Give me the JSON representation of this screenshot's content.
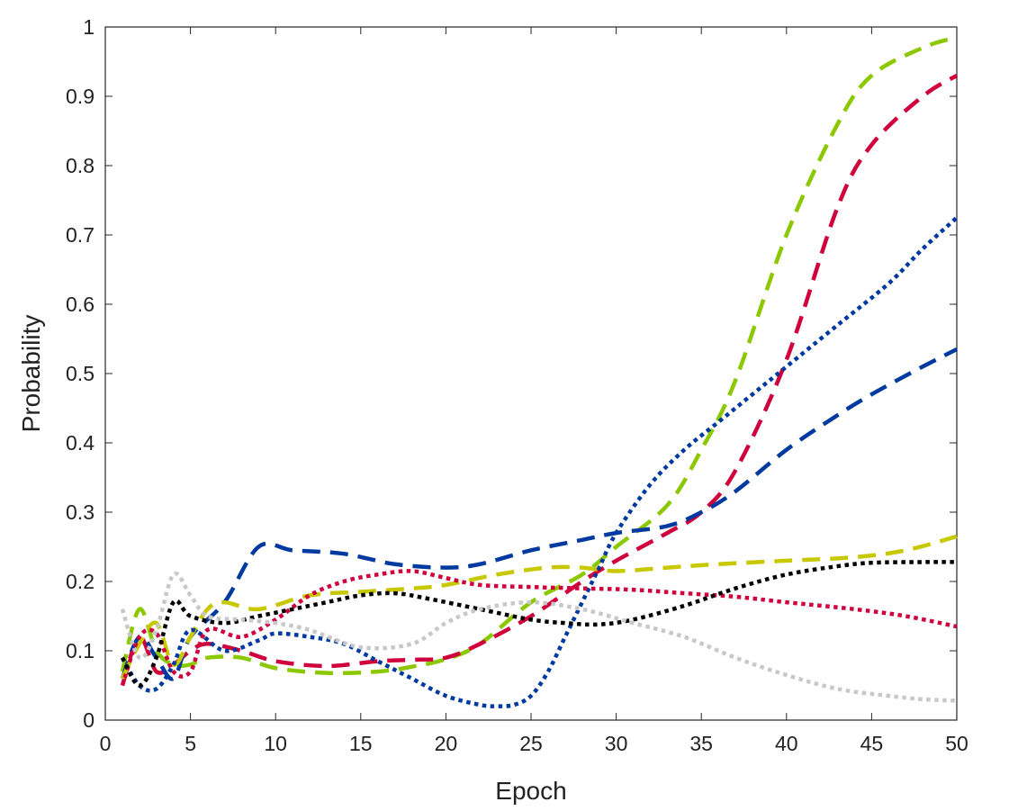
{
  "chart_data": {
    "type": "line",
    "title": "",
    "xlabel": "Epoch",
    "ylabel": "Probability",
    "xlim": [
      0,
      50
    ],
    "ylim": [
      0,
      1
    ],
    "xticks": [
      0,
      5,
      10,
      15,
      20,
      25,
      30,
      35,
      40,
      45,
      50
    ],
    "yticks": [
      0,
      0.1,
      0.2,
      0.3,
      0.4,
      0.5,
      0.6,
      0.7,
      0.8,
      0.9,
      1
    ],
    "xtick_labels": [
      "0",
      "5",
      "10",
      "15",
      "20",
      "25",
      "30",
      "35",
      "40",
      "45",
      "50"
    ],
    "ytick_labels": [
      "0",
      "0.1",
      "0.2",
      "0.3",
      "0.4",
      "0.5",
      "0.6",
      "0.7",
      "0.8",
      "0.9",
      "1"
    ],
    "grid": false,
    "series": [
      {
        "name": "series-lime-dashed",
        "color": "#8cc800",
        "style": "dashed",
        "x": [
          1,
          2,
          3,
          4,
          5,
          6,
          8,
          10,
          13,
          16,
          18,
          20,
          22,
          25,
          28,
          30,
          33,
          35,
          37,
          40,
          43,
          45,
          48,
          50
        ],
        "y": [
          0.07,
          0.16,
          0.1,
          0.08,
          0.08,
          0.09,
          0.09,
          0.075,
          0.068,
          0.07,
          0.077,
          0.088,
          0.11,
          0.17,
          0.21,
          0.25,
          0.31,
          0.39,
          0.49,
          0.7,
          0.86,
          0.93,
          0.97,
          0.985
        ]
      },
      {
        "name": "series-crimson-dashed",
        "color": "#d0003c",
        "style": "dashed",
        "x": [
          1,
          2,
          3,
          4,
          5,
          6,
          8,
          10,
          13,
          16,
          18,
          20,
          22,
          25,
          28,
          30,
          33,
          35,
          37,
          40,
          43,
          45,
          48,
          50
        ],
        "y": [
          0.05,
          0.12,
          0.07,
          0.08,
          0.1,
          0.11,
          0.1,
          0.085,
          0.078,
          0.085,
          0.087,
          0.09,
          0.11,
          0.15,
          0.2,
          0.23,
          0.27,
          0.3,
          0.36,
          0.52,
          0.74,
          0.83,
          0.9,
          0.93
        ]
      },
      {
        "name": "series-blue-dashed",
        "color": "#0039a0",
        "style": "dashed",
        "x": [
          1,
          2,
          3,
          4,
          5,
          7,
          9,
          11,
          14,
          17,
          20,
          22,
          25,
          28,
          30,
          33,
          35,
          37,
          40,
          43,
          45,
          48,
          50
        ],
        "y": [
          0.06,
          0.12,
          0.09,
          0.06,
          0.12,
          0.17,
          0.25,
          0.245,
          0.24,
          0.225,
          0.22,
          0.225,
          0.245,
          0.26,
          0.27,
          0.28,
          0.3,
          0.33,
          0.39,
          0.44,
          0.47,
          0.51,
          0.535
        ]
      },
      {
        "name": "series-yellow-dashed",
        "color": "#c8c800",
        "style": "dashed",
        "x": [
          1,
          2,
          3,
          4,
          5,
          6,
          7,
          9,
          12,
          15,
          18,
          20,
          23,
          26,
          28,
          30,
          33,
          36,
          40,
          44,
          47,
          50
        ],
        "y": [
          0.06,
          0.11,
          0.14,
          0.08,
          0.12,
          0.16,
          0.17,
          0.16,
          0.18,
          0.185,
          0.19,
          0.195,
          0.21,
          0.22,
          0.22,
          0.215,
          0.22,
          0.225,
          0.23,
          0.235,
          0.245,
          0.265
        ]
      },
      {
        "name": "series-blue-dotted",
        "color": "#0039a0",
        "style": "dotted",
        "x": [
          1,
          2,
          3,
          4,
          5,
          7,
          9,
          10,
          12,
          14,
          16,
          18,
          20,
          22,
          23,
          24,
          25,
          26,
          27,
          28,
          29,
          30,
          32,
          34,
          36,
          38,
          40,
          43,
          46,
          48,
          50
        ],
        "y": [
          0.09,
          0.05,
          0.045,
          0.08,
          0.13,
          0.1,
          0.115,
          0.125,
          0.12,
          0.11,
          0.085,
          0.06,
          0.035,
          0.022,
          0.02,
          0.022,
          0.035,
          0.07,
          0.12,
          0.17,
          0.22,
          0.27,
          0.34,
          0.39,
          0.43,
          0.47,
          0.51,
          0.57,
          0.63,
          0.68,
          0.725
        ]
      },
      {
        "name": "series-crimson-dotted",
        "color": "#d0003c",
        "style": "dotted",
        "x": [
          1,
          2,
          3,
          4,
          5,
          6,
          8,
          10,
          12,
          14,
          16,
          18,
          20,
          22,
          25,
          28,
          31,
          34,
          37,
          40,
          44,
          47,
          50
        ],
        "y": [
          0.05,
          0.12,
          0.125,
          0.07,
          0.07,
          0.13,
          0.12,
          0.145,
          0.18,
          0.2,
          0.21,
          0.215,
          0.205,
          0.195,
          0.192,
          0.19,
          0.188,
          0.183,
          0.178,
          0.17,
          0.16,
          0.15,
          0.135
        ]
      },
      {
        "name": "series-black-dotted",
        "color": "#000000",
        "style": "dotted",
        "x": [
          1,
          2,
          3,
          4,
          5,
          7,
          9,
          11,
          13,
          15,
          17,
          19,
          22,
          25,
          27,
          29,
          31,
          34,
          37,
          40,
          43,
          45,
          48,
          50
        ],
        "y": [
          0.09,
          0.05,
          0.09,
          0.17,
          0.15,
          0.14,
          0.15,
          0.16,
          0.17,
          0.18,
          0.183,
          0.175,
          0.16,
          0.145,
          0.14,
          0.138,
          0.145,
          0.165,
          0.19,
          0.21,
          0.222,
          0.227,
          0.228,
          0.228
        ]
      },
      {
        "name": "series-gray-dotted",
        "color": "#c8c8c8",
        "style": "dotted",
        "x": [
          1,
          2,
          3,
          4,
          5,
          6,
          8,
          10,
          12,
          15,
          18,
          20,
          22,
          25,
          28,
          31,
          34,
          37,
          40,
          43,
          46,
          48,
          50
        ],
        "y": [
          0.16,
          0.09,
          0.13,
          0.21,
          0.18,
          0.15,
          0.145,
          0.14,
          0.13,
          0.105,
          0.11,
          0.14,
          0.16,
          0.17,
          0.16,
          0.14,
          0.12,
          0.09,
          0.065,
          0.045,
          0.035,
          0.03,
          0.028
        ]
      }
    ]
  }
}
